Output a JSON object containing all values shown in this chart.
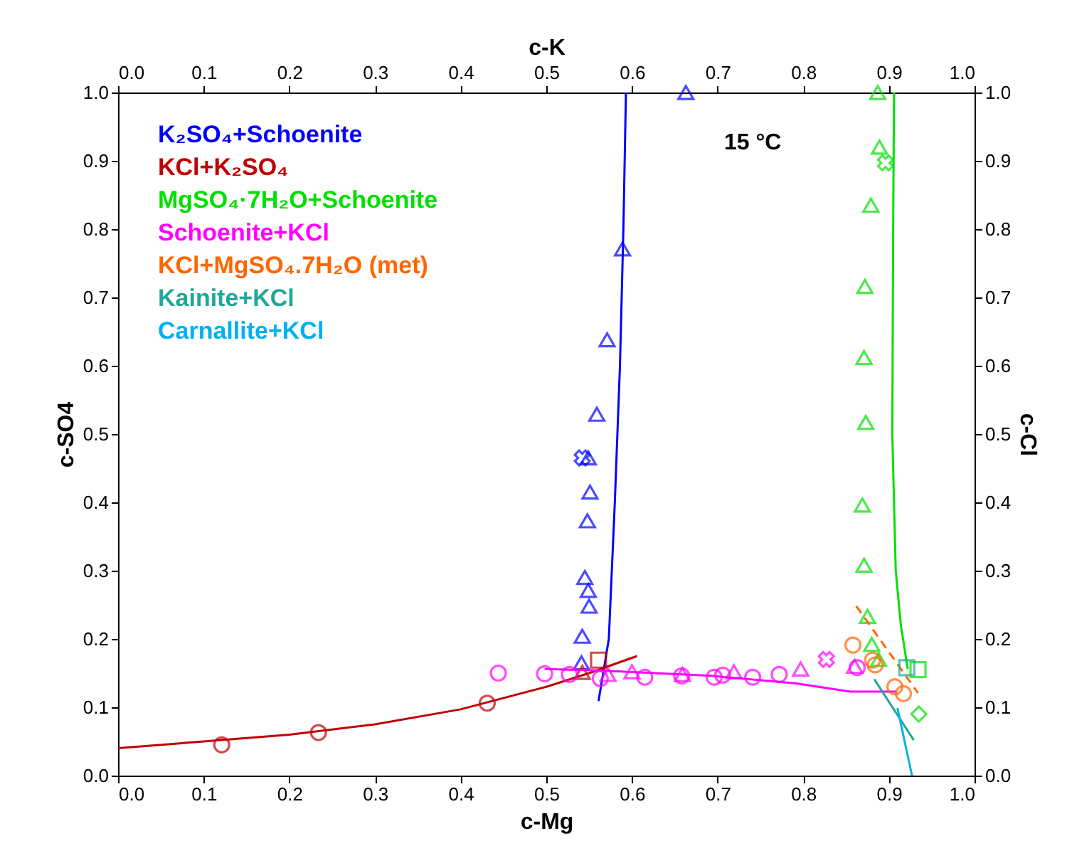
{
  "chart_data": {
    "type": "scatter",
    "xlabel": "c-Mg",
    "x2label": "c-K",
    "ylabel": "c-SO4",
    "y2label": "c-Cl",
    "xlim": [
      0,
      1
    ],
    "ylim": [
      0,
      1
    ],
    "x2lim": [
      0,
      1
    ],
    "y2lim": [
      0,
      1
    ],
    "xticks": [
      {
        "value": 0,
        "label": "0.0"
      },
      0.1,
      0.2,
      0.3,
      0.4,
      0.5,
      0.6,
      0.7,
      0.8,
      0.9,
      {
        "value": 1,
        "label": "1.0"
      }
    ],
    "x2ticks": [
      {
        "value": 0,
        "label": "0.0"
      },
      0.1,
      0.2,
      0.3,
      0.4,
      0.5,
      0.6,
      0.7,
      0.8,
      0.9,
      {
        "value": 1,
        "label": "1.0"
      }
    ],
    "yticks": [
      {
        "value": 0,
        "label": "0.0"
      },
      0.1,
      0.2,
      0.3,
      0.4,
      0.5,
      0.6,
      0.7,
      0.8,
      0.9,
      {
        "value": 1,
        "label": "1.0"
      }
    ],
    "y2ticks": [
      {
        "value": 0,
        "label": "0.0"
      },
      0.1,
      0.2,
      0.3,
      0.4,
      0.5,
      0.6,
      0.7,
      0.8,
      0.9,
      {
        "value": 1,
        "label": "1.0"
      }
    ],
    "grid": false,
    "legend": "top left",
    "annotations": [
      "15 °C"
    ],
    "series": [
      {
        "name": "K₂SO₄+Schoenite",
        "color": "#0000ff",
        "marker": "triangle",
        "x": [
          0.663,
          0.589,
          0.571,
          0.559,
          0.549,
          0.551,
          0.548,
          0.545,
          0.549,
          0.55,
          0.542,
          0.541
        ],
        "values": [
          1.0,
          0.771,
          0.638,
          0.529,
          0.465,
          0.415,
          0.373,
          0.29,
          0.271,
          0.248,
          0.204,
          0.165
        ]
      },
      {
        "color": "#0000ff",
        "type": "scatter",
        "marker": "cross",
        "x": [
          0.542
        ],
        "values": [
          0.465
        ]
      },
      {
        "color": "#0000ff",
        "type": "line",
        "marker": "none",
        "line_style": "solid",
        "x": [
          0.561,
          0.573,
          0.58,
          0.586,
          0.59,
          0.593
        ],
        "values": [
          0.109,
          0.2,
          0.4,
          0.6,
          0.8,
          1.0
        ]
      },
      {
        "name": "KCl+K₂SO₄",
        "color": "#c00000",
        "marker": "circle",
        "x": [
          0.121,
          0.234,
          0.431
        ],
        "values": [
          0.045,
          0.063,
          0.106
        ]
      },
      {
        "color": "#c00000",
        "type": "scatter",
        "marker": "triangle",
        "x": [
          0.542
        ],
        "values": [
          0.151
        ]
      },
      {
        "color": "#c00000",
        "type": "scatter",
        "marker": "square",
        "x": [
          0.561
        ],
        "values": [
          0.169
        ]
      },
      {
        "color": "#c00000",
        "type": "line",
        "marker": "none",
        "line_style": "solid",
        "x": [
          0,
          0.1,
          0.2,
          0.3,
          0.4,
          0.5,
          0.55,
          0.606
        ],
        "values": [
          0.04,
          0.05,
          0.06,
          0.075,
          0.097,
          0.13,
          0.15,
          0.175
        ]
      },
      {
        "name": "MgSO₄·7H₂O+Schoenite",
        "color": "#00e000",
        "marker": "triangle",
        "x": [
          0.887,
          0.889,
          0.879,
          0.872,
          0.871,
          0.873,
          0.869,
          0.871,
          0.875,
          0.88,
          0.888
        ],
        "values": [
          1.0,
          0.92,
          0.835,
          0.716,
          0.612,
          0.517,
          0.396,
          0.308,
          0.233,
          0.192,
          0.17
        ]
      },
      {
        "color": "#00e000",
        "type": "scatter",
        "marker": "cross",
        "x": [
          0.896
        ],
        "values": [
          0.897
        ]
      },
      {
        "color": "#00e000",
        "type": "scatter",
        "marker": "square",
        "x": [
          0.934
        ],
        "values": [
          0.155
        ]
      },
      {
        "color": "#00e000",
        "type": "scatter",
        "marker": "diamond",
        "x": [
          0.935
        ],
        "values": [
          0.09
        ]
      },
      {
        "color": "#00e000",
        "type": "line",
        "marker": "none",
        "line_style": "solid",
        "x": [
          0.906,
          0.905,
          0.904,
          0.908,
          0.914,
          0.922
        ],
        "values": [
          1.0,
          0.8,
          0.5,
          0.3,
          0.22,
          0.156
        ]
      },
      {
        "name": "Schoenite+KCl",
        "color": "#ff00ff",
        "marker": "circle",
        "x": [
          0.444,
          0.498,
          0.527,
          0.563,
          0.615,
          0.658,
          0.696,
          0.706,
          0.741,
          0.772,
          0.863
        ],
        "values": [
          0.15,
          0.149,
          0.148,
          0.142,
          0.144,
          0.146,
          0.144,
          0.147,
          0.144,
          0.148,
          0.158
        ]
      },
      {
        "color": "#ff00ff",
        "type": "scatter",
        "marker": "triangle",
        "x": [
          0.572,
          0.6,
          0.659,
          0.719,
          0.797,
          0.86
        ],
        "values": [
          0.148,
          0.152,
          0.148,
          0.152,
          0.156,
          0.16
        ]
      },
      {
        "color": "#ff00ff",
        "type": "scatter",
        "marker": "cross",
        "x": [
          0.827
        ],
        "values": [
          0.17
        ]
      },
      {
        "color": "#ff00ff",
        "type": "line",
        "marker": "none",
        "line_style": "solid",
        "x": [
          0.498,
          0.561,
          0.693,
          0.792,
          0.855,
          0.909
        ],
        "values": [
          0.156,
          0.154,
          0.146,
          0.135,
          0.123,
          0.123
        ]
      },
      {
        "name": "KCl+MgSO₄.7H₂O (met)",
        "color": "#ff6600",
        "marker": "circle",
        "x": [
          0.858,
          0.881,
          0.884,
          0.907,
          0.917
        ],
        "values": [
          0.191,
          0.169,
          0.162,
          0.13,
          0.12
        ]
      },
      {
        "color": "#ff6600",
        "type": "line",
        "marker": "none",
        "line_style": "dashed",
        "x": [
          0.862,
          0.934
        ],
        "values": [
          0.248,
          0.121
        ]
      },
      {
        "name": "Kainite+KCl",
        "color": "#20a898",
        "marker": "square",
        "x": [
          0.921
        ],
        "values": [
          0.158
        ]
      },
      {
        "color": "#20a898",
        "type": "line",
        "marker": "none",
        "line_style": "solid",
        "x": [
          0.883,
          0.929
        ],
        "values": [
          0.141,
          0.052
        ]
      },
      {
        "name": "Carnallite+KCl",
        "color": "#00b0f0",
        "type": "line",
        "marker": "none",
        "line_style": "solid",
        "x": [
          0.91,
          0.927
        ],
        "values": [
          0.099,
          0.0
        ]
      }
    ]
  }
}
